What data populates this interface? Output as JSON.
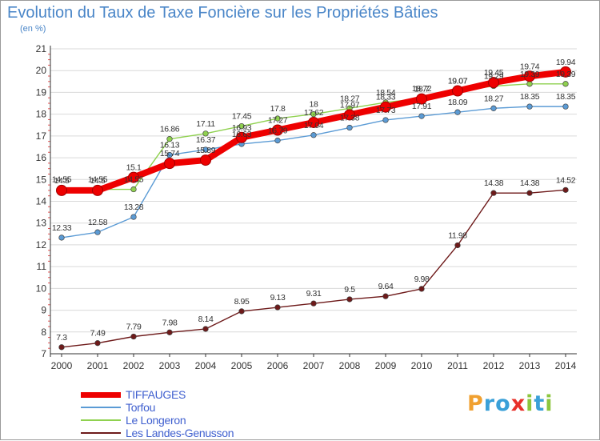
{
  "header": {
    "title": "Evolution du Taux de Taxe Foncière sur les Propriétés Bâties",
    "unit": "(en %)"
  },
  "brand": {
    "letters": [
      "P",
      "r",
      "o",
      "x",
      "i",
      "t",
      "i"
    ],
    "letter_colors": [
      "#f0a030",
      "#3aa0d8",
      "#3aa0d8",
      "#e8302a",
      "#8cc63e",
      "#3aa0d8",
      "#8cc63e"
    ]
  },
  "colors": {
    "axis": "#333333",
    "grid": "#d9d9d9",
    "tick_mark": "#e85a5a",
    "point_label": "#333333"
  },
  "chart_data": {
    "type": "line",
    "title": "Evolution du Taux de Taxe Foncière sur les Propriétés Bâties",
    "ylabel": "(en %)",
    "xlabel": "",
    "x": [
      "2000",
      "2001",
      "2002",
      "2003",
      "2004",
      "2005",
      "2006",
      "2007",
      "2008",
      "2009",
      "2010",
      "2011",
      "2012",
      "2013",
      "2014"
    ],
    "ylim": [
      7,
      21
    ],
    "yticks": [
      "7",
      "8",
      "9",
      "10",
      "11",
      "12",
      "13",
      "14",
      "15",
      "16",
      "17",
      "18",
      "19",
      "20",
      "21"
    ],
    "grid": "horizontal",
    "legend_position": "bottom-left",
    "series": [
      {
        "name": "Les Landes-Genusson",
        "color": "#6e1a1a",
        "values": [
          7.3,
          7.49,
          7.79,
          7.98,
          8.14,
          8.95,
          9.13,
          9.31,
          9.5,
          9.64,
          9.98,
          11.98,
          14.38,
          14.38,
          14.52
        ],
        "labels": [
          "7.3",
          "7.49",
          "7.79",
          "7.98",
          "8.14",
          "8.95",
          "9.13",
          "9.31",
          "9.5",
          "9.64",
          "9.98",
          "11.98",
          "14.38",
          "14.38",
          "14.52"
        ],
        "style": "thin"
      },
      {
        "name": "Torfou",
        "color": "#5b9bd5",
        "values": [
          12.33,
          12.58,
          13.28,
          16.13,
          16.37,
          16.63,
          16.79,
          17.04,
          17.38,
          17.73,
          17.91,
          18.09,
          18.27,
          18.35,
          18.35
        ],
        "labels": [
          "12.33",
          "12.58",
          "13.28",
          "16.13",
          "16.37",
          "16.63",
          "16.79",
          "17.04",
          "17.38",
          "17.73",
          "17.91",
          "18.09",
          "18.27",
          "18.35",
          "18.35"
        ],
        "style": "thin"
      },
      {
        "name": "Le Longeron",
        "color": "#8fd14f",
        "values": [
          14.55,
          14.55,
          14.55,
          16.86,
          17.11,
          17.45,
          17.8,
          18.0,
          18.27,
          18.54,
          18.72,
          19.07,
          19.29,
          19.39,
          19.39
        ],
        "labels": [
          "14.55",
          "14.55",
          "14.55",
          "16.86",
          "17.11",
          "17.45",
          "17.8",
          "18",
          "18.27",
          "18.54",
          "18.72",
          "19.07",
          "19.29",
          "19.39",
          "19.39"
        ],
        "style": "thin"
      },
      {
        "name": "TIFFAUGES",
        "color": "#ee0000",
        "values": [
          14.5,
          14.5,
          15.1,
          15.74,
          15.89,
          16.93,
          17.27,
          17.62,
          17.97,
          18.33,
          18.7,
          19.07,
          19.45,
          19.74,
          19.94
        ],
        "labels": [
          "14.5",
          "14.5",
          "15.1",
          "15.74",
          "15.89",
          "16.93",
          "17.27",
          "17.62",
          "17.97",
          "18.33",
          "18.7",
          "19.07",
          "19.45",
          "19.74",
          "19.94"
        ],
        "style": "thick"
      }
    ]
  },
  "legend": {
    "items": [
      {
        "label": "TIFFAUGES",
        "color": "#ee0000",
        "style": "thick"
      },
      {
        "label": "Torfou",
        "color": "#5b9bd5",
        "style": "thin"
      },
      {
        "label": "Le Longeron",
        "color": "#8fd14f",
        "style": "thin"
      },
      {
        "label": "Les Landes-Genusson",
        "color": "#6e1a1a",
        "style": "thin"
      }
    ]
  }
}
